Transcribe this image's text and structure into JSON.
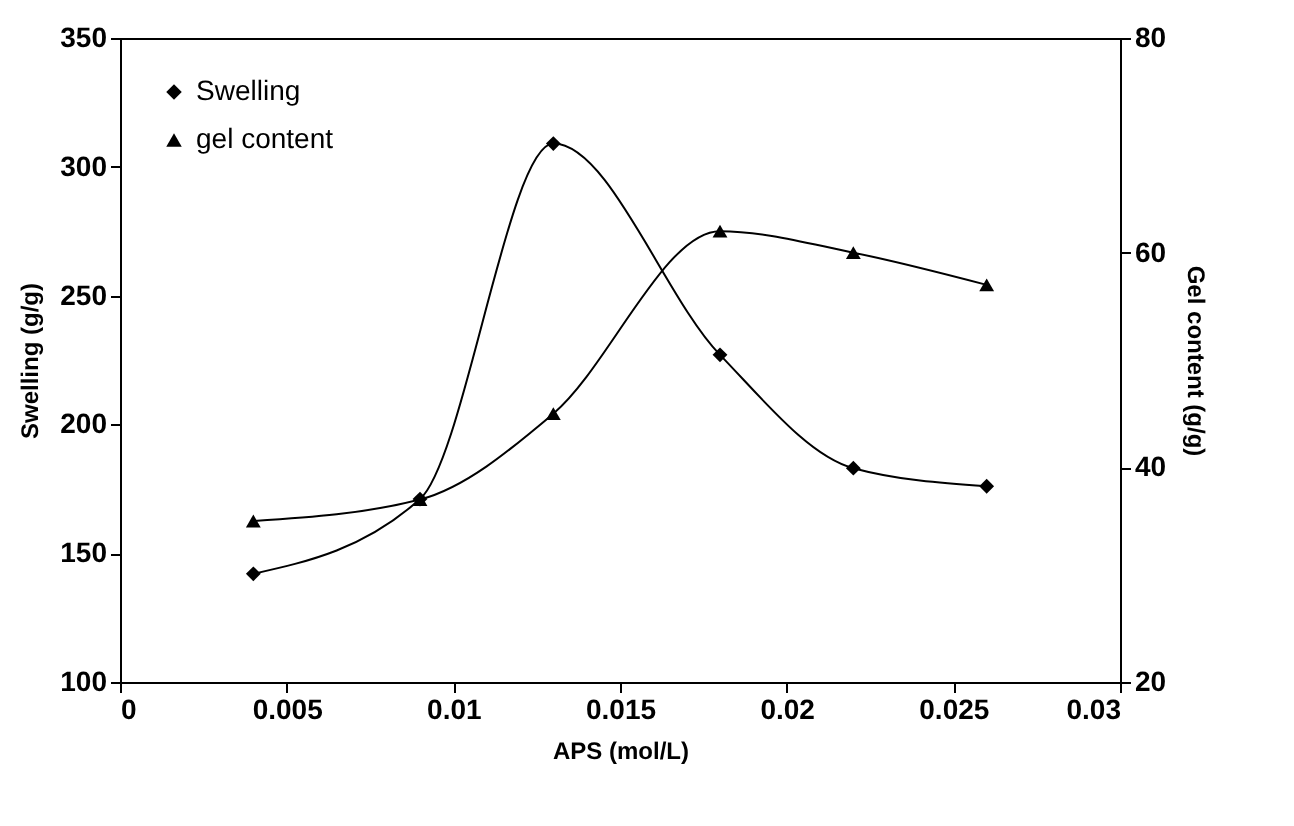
{
  "chart_data": {
    "type": "line",
    "xlabel": "APS (mol/L)",
    "ylabel": "Swelling (g/g)",
    "y2label": "Gel content (g/g)",
    "x": [
      0.004,
      0.009,
      0.013,
      0.018,
      0.022,
      0.026
    ],
    "series": [
      {
        "name": "Swelling",
        "color": "#000000",
        "marker": "diamond",
        "values": [
          142,
          171,
          309,
          227,
          183,
          176
        ]
      },
      {
        "name": "gel content",
        "color": "#000000",
        "marker": "triangle",
        "axis": "y2",
        "values": [
          35,
          37,
          45,
          62,
          60,
          57
        ]
      }
    ],
    "xlim": [
      0,
      0.03
    ],
    "xticks": [
      0,
      0.005,
      0.01,
      0.015,
      0.02,
      0.025,
      0.03
    ],
    "ylim": [
      100,
      350
    ],
    "yticks": [
      100,
      150,
      200,
      250,
      300,
      350
    ],
    "y2lim": [
      20,
      80
    ],
    "y2ticks": [
      20,
      40,
      60,
      80
    ],
    "legend": "top left",
    "grid": false,
    "line_style": "solid"
  }
}
